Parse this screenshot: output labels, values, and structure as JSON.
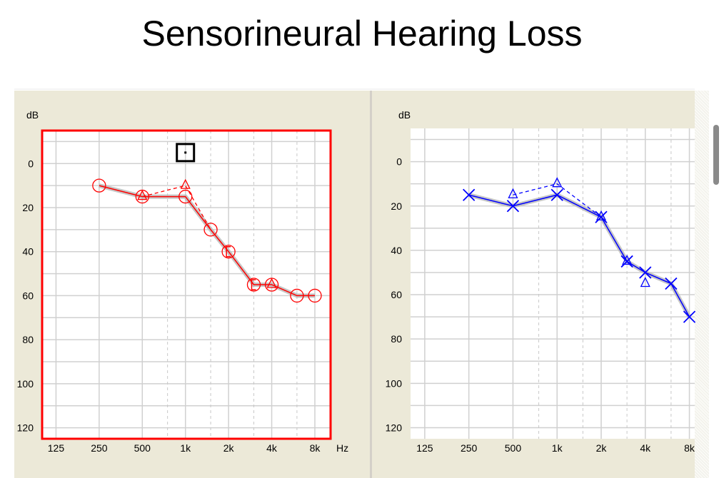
{
  "title": "Sensorineural Hearing Loss",
  "chart_data": [
    {
      "type": "line",
      "ear": "left",
      "ylabel": "dB",
      "xlabel": "Hz",
      "x_tick_labels": [
        "125",
        "250",
        "500",
        "1k",
        "2k",
        "4k",
        "8k"
      ],
      "x_ticks": [
        125,
        250,
        500,
        1000,
        2000,
        4000,
        8000
      ],
      "x_minor": [
        750,
        1500,
        3000,
        6000
      ],
      "x_scale": "log",
      "xlim": [
        100,
        10300
      ],
      "y_tick_labels": [
        "0",
        "20",
        "40",
        "60",
        "80",
        "100",
        "120"
      ],
      "y_ticks": [
        0,
        20,
        40,
        60,
        80,
        100,
        120
      ],
      "ylim": [
        -15,
        125
      ],
      "y_inverted": true,
      "grid": true,
      "color": "#ff0000",
      "frame_highlight": true,
      "marker_square": {
        "x": 1000,
        "y": -5
      },
      "series": [
        {
          "symbol": "circle",
          "line": "solid",
          "x": [
            250,
            500,
            1000,
            1500,
            2000,
            3000,
            4000,
            6000,
            8000
          ],
          "y": [
            10,
            15,
            15,
            30,
            40,
            55,
            55,
            60,
            60
          ]
        },
        {
          "symbol": "triangle",
          "line": "dashed",
          "x": [
            500,
            1000,
            1500
          ],
          "y": [
            15,
            10,
            30
          ],
          "symbols_at": [
            500,
            1000
          ]
        },
        {
          "symbol": "bracket",
          "line": "none",
          "x": [
            2000,
            3000
          ],
          "y": [
            40,
            55
          ]
        },
        {
          "symbol": "triangle",
          "line": "none",
          "x": [
            4000
          ],
          "y": [
            55
          ]
        }
      ]
    },
    {
      "type": "line",
      "ear": "right",
      "ylabel": "dB",
      "xlabel": "",
      "x_tick_labels": [
        "125",
        "250",
        "500",
        "1k",
        "2k",
        "4k",
        "8k"
      ],
      "x_ticks": [
        125,
        250,
        500,
        1000,
        2000,
        4000,
        8000
      ],
      "x_minor": [
        750,
        1500,
        3000,
        6000
      ],
      "x_scale": "log",
      "xlim": [
        100,
        8700
      ],
      "y_tick_labels": [
        "0",
        "20",
        "40",
        "60",
        "80",
        "100",
        "120"
      ],
      "y_ticks": [
        0,
        20,
        40,
        60,
        80,
        100,
        120
      ],
      "ylim": [
        -15,
        125
      ],
      "y_inverted": true,
      "grid": true,
      "color": "#0000ff",
      "frame_highlight": false,
      "series": [
        {
          "symbol": "x",
          "line": "solid",
          "x": [
            250,
            500,
            1000,
            2000,
            3000,
            4000,
            6000,
            8000
          ],
          "y": [
            15,
            20,
            15,
            25,
            45,
            50,
            55,
            70
          ]
        },
        {
          "symbol": "triangle",
          "line": "dashed",
          "x": [
            500,
            1000,
            2000
          ],
          "y": [
            15,
            10,
            25
          ]
        },
        {
          "symbol": "triangle",
          "line": "none",
          "x": [
            3000,
            4000
          ],
          "y": [
            45,
            55
          ]
        }
      ]
    }
  ]
}
